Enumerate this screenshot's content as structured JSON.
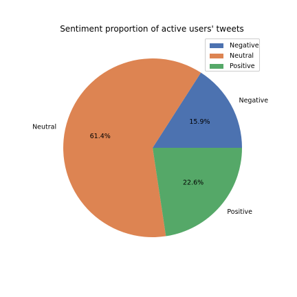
{
  "chart_data": {
    "type": "pie",
    "title": "Sentiment proportion of active users' tweets",
    "slices": [
      {
        "label": "Negative",
        "value": 15.9,
        "pct_label": "15.9%",
        "color": "#4c72b0"
      },
      {
        "label": "Neutral",
        "value": 61.4,
        "pct_label": "61.4%",
        "color": "#dd8452"
      },
      {
        "label": "Positive",
        "value": 22.6,
        "pct_label": "22.6%",
        "color": "#55a868"
      }
    ],
    "start_angle_deg": 0,
    "direction": "counterclockwise",
    "legend": {
      "placement": "top-right",
      "entries": [
        "Negative",
        "Neutral",
        "Positive"
      ]
    }
  }
}
